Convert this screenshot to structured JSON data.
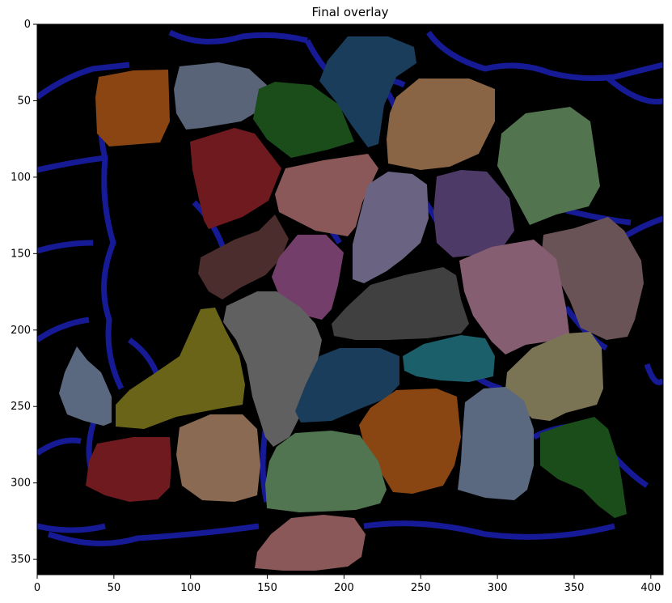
{
  "chart_data": {
    "type": "image",
    "title": "Final overlay",
    "xlabel": "",
    "ylabel": "",
    "xlim": [
      0,
      408
    ],
    "ylim": [
      360,
      0
    ],
    "xticks": [
      0,
      50,
      100,
      150,
      200,
      250,
      300,
      350,
      400
    ],
    "yticks": [
      0,
      50,
      100,
      150,
      200,
      250,
      300,
      350
    ],
    "background_color": "#000000",
    "membrane_color": "#1a1fb0",
    "regions": [
      {
        "label": "orange-brown",
        "color": "#8a4512",
        "center": [
          67,
          52
        ]
      },
      {
        "label": "slate-gray",
        "color": "#5a6478",
        "center": [
          112,
          48
        ]
      },
      {
        "label": "dark-green",
        "color": "#1a4d1a",
        "center": [
          175,
          68
        ]
      },
      {
        "label": "steel-blue",
        "color": "#1a3d5c",
        "center": [
          222,
          38
        ]
      },
      {
        "label": "tan",
        "color": "#8a6545",
        "center": [
          265,
          67
        ]
      },
      {
        "label": "sage-green",
        "color": "#527550",
        "center": [
          335,
          100
        ]
      },
      {
        "label": "crimson",
        "color": "#6e1a1e",
        "center": [
          120,
          105
        ]
      },
      {
        "label": "dusty-rose",
        "color": "#8a5858",
        "center": [
          208,
          112
        ]
      },
      {
        "label": "muted-violet",
        "color": "#6a6482",
        "center": [
          247,
          145
        ]
      },
      {
        "label": "plum",
        "color": "#4e3a66",
        "center": [
          288,
          130
        ]
      },
      {
        "label": "mauve-brown",
        "color": "#6a5356",
        "center": [
          368,
          175
        ]
      },
      {
        "label": "dark-brown",
        "color": "#4a2d2c",
        "center": [
          113,
          153
        ]
      },
      {
        "label": "magenta",
        "color": "#743e6a",
        "center": [
          180,
          163
        ]
      },
      {
        "label": "charcoal",
        "color": "#404040",
        "center": [
          257,
          192
        ]
      },
      {
        "label": "pink-mauve",
        "color": "#865e72",
        "center": [
          323,
          188
        ]
      },
      {
        "label": "olive",
        "color": "#6a6418",
        "center": [
          97,
          225
        ]
      },
      {
        "label": "gray",
        "color": "#606060",
        "center": [
          153,
          228
        ]
      },
      {
        "label": "navy",
        "color": "#1a3d5c",
        "center": [
          202,
          245
        ]
      },
      {
        "label": "teal",
        "color": "#1a5f6a",
        "center": [
          275,
          222
        ]
      },
      {
        "label": "khaki",
        "color": "#7a7455",
        "center": [
          350,
          238
        ]
      },
      {
        "label": "gray-blue",
        "color": "#5a6880",
        "center": [
          30,
          240
        ]
      },
      {
        "label": "burnt-orange",
        "color": "#8a4612",
        "center": [
          250,
          278
        ]
      },
      {
        "label": "periwinkle-gray",
        "color": "#5a6880",
        "center": [
          314,
          283
        ]
      },
      {
        "label": "forest-green",
        "color": "#1a4d1a",
        "center": [
          361,
          290
        ]
      },
      {
        "label": "wine-red",
        "color": "#6e1a1e",
        "center": [
          57,
          288
        ]
      },
      {
        "label": "light-tan",
        "color": "#8a6a52",
        "center": [
          117,
          285
        ]
      },
      {
        "label": "moss-green",
        "color": "#507550",
        "center": [
          195,
          290
        ]
      },
      {
        "label": "salmon",
        "color": "#8a5858",
        "center": [
          185,
          340
        ]
      }
    ]
  }
}
